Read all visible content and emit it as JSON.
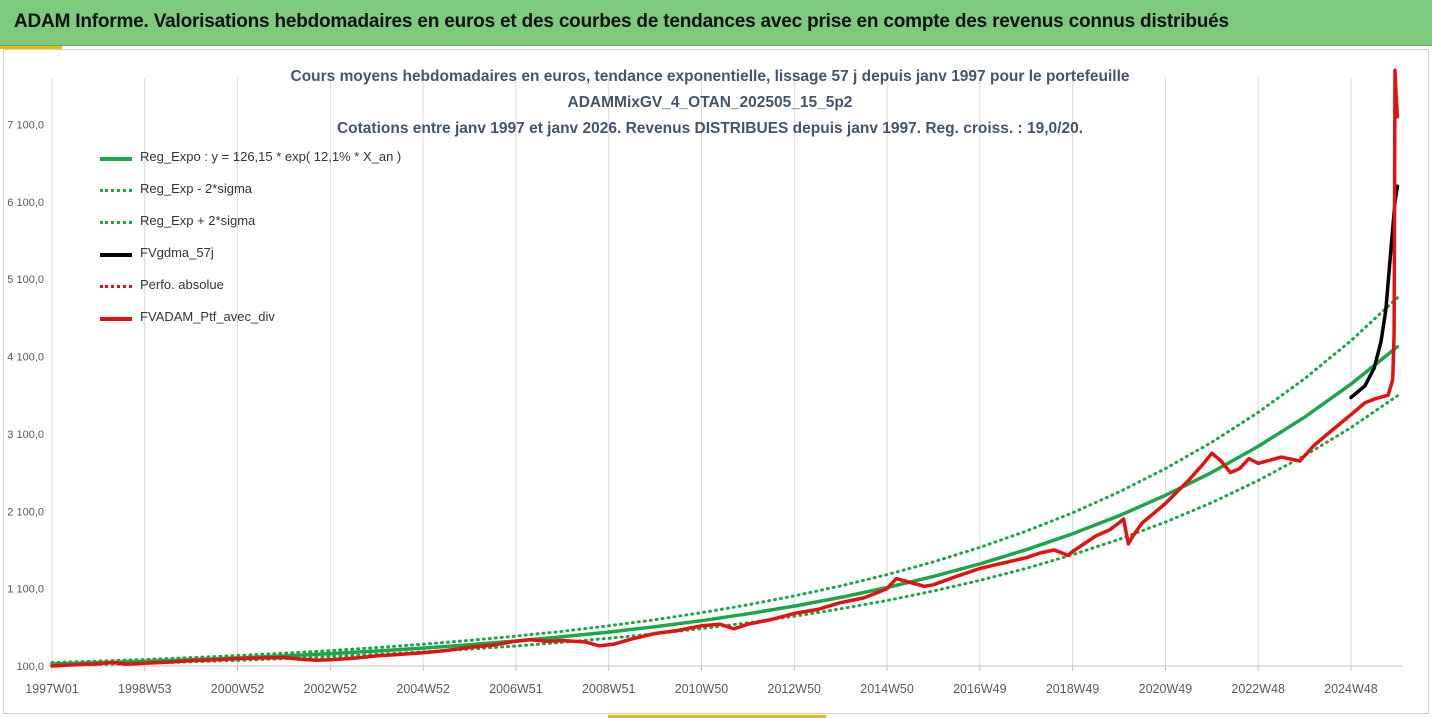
{
  "header": {
    "title": "ADAM Informe. Valorisations hebdomadaires en euros et des courbes de tendances avec prise en compte des revenus connus distribués"
  },
  "colors": {
    "banner": "#7dc97e",
    "accent": "#f1b800",
    "regression": "#1aa64a",
    "smoothed": "#000000",
    "portfolio": "#e3110f",
    "title_text": "#44546a"
  },
  "chart_data": {
    "type": "line",
    "title": "Cours moyens hebdomadaires en euros, tendance exponentielle, lissage 57 j depuis janv 1997 pour le portefeuille",
    "subtitle": "ADAMMixGV_4_OTAN_202505_15_5p2",
    "subtitle2": "Cotations entre janv 1997 et janv 2026. Revenus DISTRIBUES depuis janv 1997. Reg. croiss. : 19,0/20.",
    "xlabel": "",
    "ylabel": "",
    "xlim": [
      1997.0,
      2026.1
    ],
    "ylim": [
      100,
      7700
    ],
    "grid": "vertical",
    "legend_position": "top-left",
    "x_ticks": [
      {
        "label": "1997W01",
        "x": 1997.0
      },
      {
        "label": "1998W53",
        "x": 1999.0
      },
      {
        "label": "2000W52",
        "x": 2001.0
      },
      {
        "label": "2002W52",
        "x": 2003.0
      },
      {
        "label": "2004W52",
        "x": 2005.0
      },
      {
        "label": "2006W51",
        "x": 2007.0
      },
      {
        "label": "2008W51",
        "x": 2009.0
      },
      {
        "label": "2010W50",
        "x": 2011.0
      },
      {
        "label": "2012W50",
        "x": 2013.0
      },
      {
        "label": "2014W50",
        "x": 2015.0
      },
      {
        "label": "2016W49",
        "x": 2017.0
      },
      {
        "label": "2018W49",
        "x": 2019.0
      },
      {
        "label": "2020W49",
        "x": 2021.0
      },
      {
        "label": "2022W48",
        "x": 2023.0
      },
      {
        "label": "2024W48",
        "x": 2025.0
      }
    ],
    "y_ticks": [
      {
        "label": "100,0",
        "value": 100
      },
      {
        "label": "1 100,0",
        "value": 1100
      },
      {
        "label": "2 100,0",
        "value": 2100
      },
      {
        "label": "3 100,0",
        "value": 3100
      },
      {
        "label": "4 100,0",
        "value": 4100
      },
      {
        "label": "5 100,0",
        "value": 5100
      },
      {
        "label": "6 100,0",
        "value": 6100
      },
      {
        "label": "7 100,0",
        "value": 7100
      }
    ],
    "series": [
      {
        "name": "Reg_Expo : y = 126,15 * exp( 12,1% *  X_an )",
        "color": "#1aa64a",
        "style": "solid",
        "points": [
          [
            1997.0,
            126
          ],
          [
            1998.0,
            142
          ],
          [
            1999.0,
            160
          ],
          [
            2000.0,
            181
          ],
          [
            2001.0,
            204
          ],
          [
            2002.0,
            231
          ],
          [
            2003.0,
            260
          ],
          [
            2004.0,
            294
          ],
          [
            2005.0,
            332
          ],
          [
            2006.0,
            374
          ],
          [
            2007.0,
            423
          ],
          [
            2008.0,
            477
          ],
          [
            2009.0,
            538
          ],
          [
            2010.0,
            608
          ],
          [
            2011.0,
            686
          ],
          [
            2012.0,
            775
          ],
          [
            2013.0,
            874
          ],
          [
            2014.0,
            987
          ],
          [
            2015.0,
            1114
          ],
          [
            2016.0,
            1258
          ],
          [
            2017.0,
            1420
          ],
          [
            2018.0,
            1603
          ],
          [
            2019.0,
            1809
          ],
          [
            2020.0,
            2042
          ],
          [
            2021.0,
            2306
          ],
          [
            2022.0,
            2602
          ],
          [
            2023.0,
            2938
          ],
          [
            2024.0,
            3316
          ],
          [
            2025.0,
            3743
          ],
          [
            2026.0,
            4226
          ]
        ]
      },
      {
        "name": "Reg_Exp - 2*sigma",
        "color": "#1aa64a",
        "style": "dotted",
        "points": [
          [
            1997.0,
            107
          ],
          [
            1998.0,
            121
          ],
          [
            1999.0,
            136
          ],
          [
            2000.0,
            154
          ],
          [
            2001.0,
            173
          ],
          [
            2002.0,
            196
          ],
          [
            2003.0,
            221
          ],
          [
            2004.0,
            250
          ],
          [
            2005.0,
            282
          ],
          [
            2006.0,
            318
          ],
          [
            2007.0,
            359
          ],
          [
            2008.0,
            406
          ],
          [
            2009.0,
            458
          ],
          [
            2010.0,
            517
          ],
          [
            2011.0,
            583
          ],
          [
            2012.0,
            658
          ],
          [
            2013.0,
            743
          ],
          [
            2014.0,
            839
          ],
          [
            2015.0,
            947
          ],
          [
            2016.0,
            1069
          ],
          [
            2017.0,
            1207
          ],
          [
            2018.0,
            1362
          ],
          [
            2019.0,
            1538
          ],
          [
            2020.0,
            1736
          ],
          [
            2021.0,
            1960
          ],
          [
            2022.0,
            2212
          ],
          [
            2023.0,
            2497
          ],
          [
            2024.0,
            2819
          ],
          [
            2025.0,
            3182
          ],
          [
            2026.0,
            3592
          ]
        ]
      },
      {
        "name": "Reg_Exp + 2*sigma",
        "color": "#1aa64a",
        "style": "dotted",
        "points": [
          [
            1997.0,
            145
          ],
          [
            1998.0,
            163
          ],
          [
            1999.0,
            184
          ],
          [
            2000.0,
            208
          ],
          [
            2001.0,
            235
          ],
          [
            2002.0,
            265
          ],
          [
            2003.0,
            299
          ],
          [
            2004.0,
            338
          ],
          [
            2005.0,
            382
          ],
          [
            2006.0,
            431
          ],
          [
            2007.0,
            486
          ],
          [
            2008.0,
            549
          ],
          [
            2009.0,
            619
          ],
          [
            2010.0,
            699
          ],
          [
            2011.0,
            789
          ],
          [
            2012.0,
            891
          ],
          [
            2013.0,
            1006
          ],
          [
            2014.0,
            1135
          ],
          [
            2015.0,
            1281
          ],
          [
            2016.0,
            1446
          ],
          [
            2017.0,
            1633
          ],
          [
            2018.0,
            1843
          ],
          [
            2019.0,
            2080
          ],
          [
            2020.0,
            2349
          ],
          [
            2021.0,
            2651
          ],
          [
            2022.0,
            2993
          ],
          [
            2023.0,
            3378
          ],
          [
            2024.0,
            3814
          ],
          [
            2025.0,
            4305
          ],
          [
            2026.0,
            4860
          ]
        ]
      },
      {
        "name": "FVgdma_57j",
        "color": "#000000",
        "style": "solid",
        "points": [
          [
            2025.0,
            3570
          ],
          [
            2025.3,
            3720
          ],
          [
            2025.5,
            3950
          ],
          [
            2025.65,
            4300
          ],
          [
            2025.75,
            4700
          ],
          [
            2025.85,
            5400
          ],
          [
            2025.95,
            6100
          ],
          [
            2026.0,
            6300
          ]
        ]
      },
      {
        "name": "Perfo. absolue",
        "color": "#e3110f",
        "style": "dotted",
        "points": []
      },
      {
        "name": "FVADAM_Ptf_avec_div",
        "color": "#e3110f",
        "style": "solid",
        "points": [
          [
            1997.0,
            100
          ],
          [
            1997.5,
            115
          ],
          [
            1998.0,
            130
          ],
          [
            1998.3,
            145
          ],
          [
            1998.6,
            125
          ],
          [
            1999.0,
            135
          ],
          [
            1999.5,
            150
          ],
          [
            2000.0,
            170
          ],
          [
            2000.5,
            180
          ],
          [
            2001.0,
            195
          ],
          [
            2001.5,
            205
          ],
          [
            2002.0,
            210
          ],
          [
            2002.3,
            190
          ],
          [
            2002.7,
            175
          ],
          [
            2003.0,
            180
          ],
          [
            2003.5,
            200
          ],
          [
            2004.0,
            230
          ],
          [
            2004.5,
            250
          ],
          [
            2005.0,
            270
          ],
          [
            2005.5,
            300
          ],
          [
            2006.0,
            340
          ],
          [
            2006.5,
            370
          ],
          [
            2007.0,
            420
          ],
          [
            2007.3,
            440
          ],
          [
            2007.7,
            420
          ],
          [
            2008.0,
            430
          ],
          [
            2008.5,
            410
          ],
          [
            2008.8,
            360
          ],
          [
            2009.1,
            380
          ],
          [
            2009.5,
            450
          ],
          [
            2010.0,
            520
          ],
          [
            2010.5,
            560
          ],
          [
            2011.0,
            620
          ],
          [
            2011.4,
            640
          ],
          [
            2011.7,
            580
          ],
          [
            2012.0,
            640
          ],
          [
            2012.5,
            700
          ],
          [
            2013.0,
            780
          ],
          [
            2013.5,
            830
          ],
          [
            2014.0,
            920
          ],
          [
            2014.5,
            980
          ],
          [
            2014.8,
            1050
          ],
          [
            2015.0,
            1100
          ],
          [
            2015.2,
            1230
          ],
          [
            2015.5,
            1180
          ],
          [
            2015.8,
            1130
          ],
          [
            2016.0,
            1150
          ],
          [
            2016.5,
            1260
          ],
          [
            2017.0,
            1360
          ],
          [
            2017.5,
            1430
          ],
          [
            2018.0,
            1500
          ],
          [
            2018.3,
            1560
          ],
          [
            2018.6,
            1600
          ],
          [
            2018.9,
            1530
          ],
          [
            2019.0,
            1580
          ],
          [
            2019.5,
            1780
          ],
          [
            2019.8,
            1860
          ],
          [
            2020.0,
            1950
          ],
          [
            2020.1,
            2000
          ],
          [
            2020.2,
            1680
          ],
          [
            2020.3,
            1780
          ],
          [
            2020.5,
            1950
          ],
          [
            2021.0,
            2200
          ],
          [
            2021.5,
            2500
          ],
          [
            2021.8,
            2700
          ],
          [
            2022.0,
            2850
          ],
          [
            2022.2,
            2750
          ],
          [
            2022.4,
            2600
          ],
          [
            2022.6,
            2650
          ],
          [
            2022.8,
            2780
          ],
          [
            2023.0,
            2720
          ],
          [
            2023.5,
            2800
          ],
          [
            2023.9,
            2750
          ],
          [
            2024.2,
            2950
          ],
          [
            2024.6,
            3150
          ],
          [
            2025.0,
            3350
          ],
          [
            2025.3,
            3500
          ],
          [
            2025.5,
            3550
          ],
          [
            2025.8,
            3600
          ],
          [
            2025.9,
            3800
          ],
          [
            2025.93,
            4400
          ],
          [
            2025.95,
            7800
          ],
          [
            2025.97,
            7500
          ],
          [
            2026.0,
            7200
          ]
        ]
      }
    ]
  }
}
